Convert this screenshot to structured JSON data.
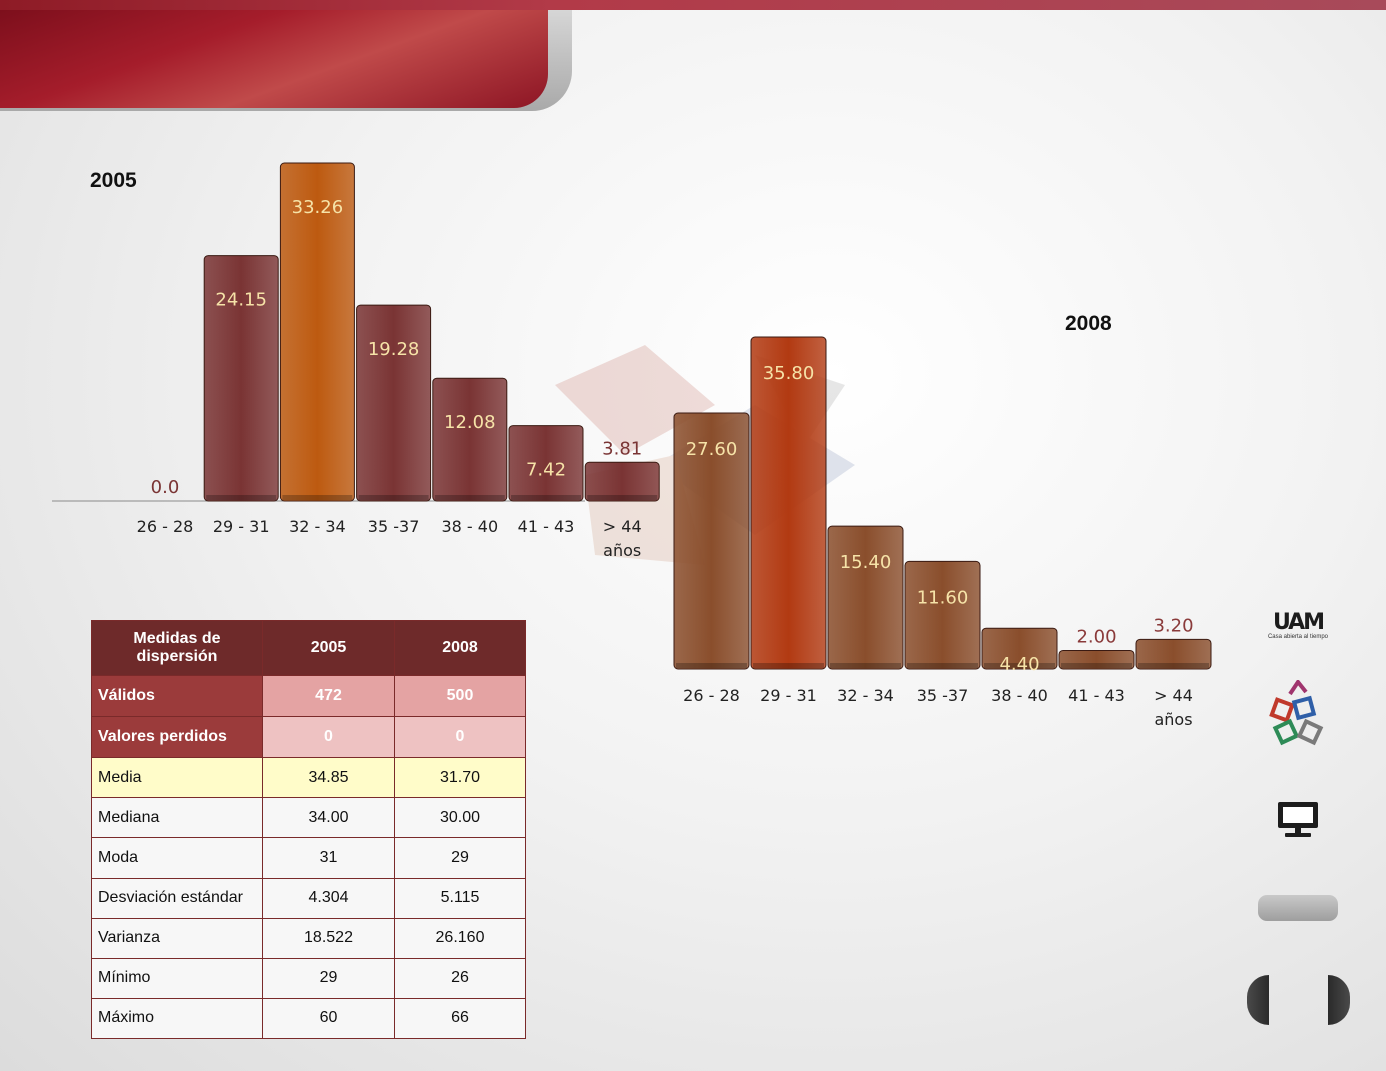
{
  "chart_data": [
    {
      "type": "bar",
      "title": "2005",
      "categories": [
        "26 - 28",
        "29 - 31",
        "32 - 34",
        "35 -37",
        "38 - 40",
        "41 - 43",
        "> 44 años"
      ],
      "values": [
        0.0,
        24.15,
        33.26,
        19.28,
        12.08,
        7.42,
        3.81
      ],
      "value_labels": [
        "0.0",
        "24.15",
        "33.26",
        "19.28",
        "12.08",
        "7.42",
        "3.81"
      ],
      "highlight_index": 2,
      "colors": {
        "bar": "#7a3434",
        "highlight": "#bd5a10",
        "label": "#f6e3a8",
        "label_outside": "#7a3434"
      },
      "ylim": [
        0,
        33.26
      ],
      "grid": false,
      "legend": "none"
    },
    {
      "type": "bar",
      "title": "2008",
      "categories": [
        "26 - 28",
        "29 - 31",
        "32 - 34",
        "35 -37",
        "38 - 40",
        "41 - 43",
        "> 44 años"
      ],
      "values": [
        27.6,
        35.8,
        15.4,
        11.6,
        4.4,
        2.0,
        3.2
      ],
      "value_labels": [
        "27.60",
        "35.80",
        "15.40",
        "11.60",
        "4.40",
        "2.00",
        "3.20"
      ],
      "highlight_index": 1,
      "colors": {
        "bar": "#8a4e2c",
        "highlight": "#b23a12",
        "label": "#f6e3a8",
        "label_outside": "#8a3a3a"
      },
      "ylim": [
        0,
        35.8
      ],
      "grid": false,
      "legend": "none"
    }
  ],
  "table": {
    "header": [
      "Medidas  de dispersión",
      "2005",
      "2008"
    ],
    "rows": [
      {
        "label": "Válidos",
        "v2005": "472",
        "v2008": "500",
        "style": "r-head1"
      },
      {
        "label": "Valores perdidos",
        "v2005": "0",
        "v2008": "0",
        "style": "r-head2"
      },
      {
        "label": "Media",
        "v2005": "34.85",
        "v2008": "31.70",
        "style": "r-hl"
      },
      {
        "label": "Mediana",
        "v2005": "34.00",
        "v2008": "30.00",
        "style": "r-plain"
      },
      {
        "label": "Moda",
        "v2005": "31",
        "v2008": "29",
        "style": "r-plain"
      },
      {
        "label": "Desviación estándar",
        "v2005": "4.304",
        "v2008": "5.115",
        "style": "r-plain"
      },
      {
        "label": "Varianza",
        "v2005": "18.522",
        "v2008": "26.160",
        "style": "r-plain"
      },
      {
        "label": "Mínimo",
        "v2005": "29",
        "v2008": "26",
        "style": "r-plain"
      },
      {
        "label": "Máximo",
        "v2005": "60",
        "v2008": "66",
        "style": "r-plain"
      }
    ]
  },
  "sidebar": {
    "logo_text": "UAM",
    "logo_tagline": "Casa abierta al tiempo",
    "icons": [
      "uam-logo",
      "cubes-logo",
      "monitor-icon"
    ]
  }
}
